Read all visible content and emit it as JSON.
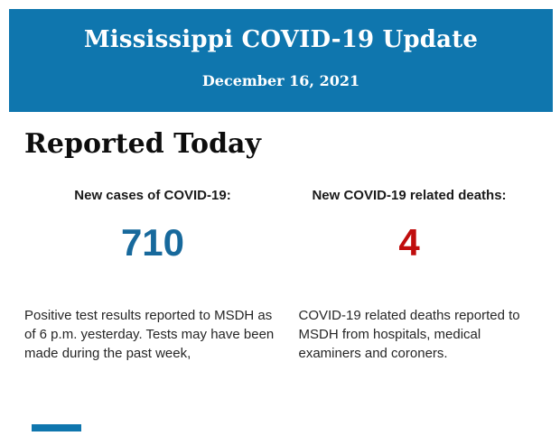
{
  "banner": {
    "title": "Mississippi COVID-19 Update",
    "date": "December 16, 2021",
    "background_color": "#0f76ae",
    "text_color": "#ffffff"
  },
  "section": {
    "heading": "Reported Today"
  },
  "stats": [
    {
      "label": "New cases of COVID-19:",
      "value": "710",
      "value_color": "#17699c",
      "description": "Positive test results reported to MSDH as of 6 p.m. yesterday. Tests may have been made during the past week,"
    },
    {
      "label": "New COVID-19 related deaths:",
      "value": "4",
      "value_color": "#c00d0d",
      "description": "COVID-19 related deaths reported to MSDH from hospitals, medical examiners and coroners."
    }
  ],
  "footer": {
    "accent_color": "#0f76ae"
  }
}
